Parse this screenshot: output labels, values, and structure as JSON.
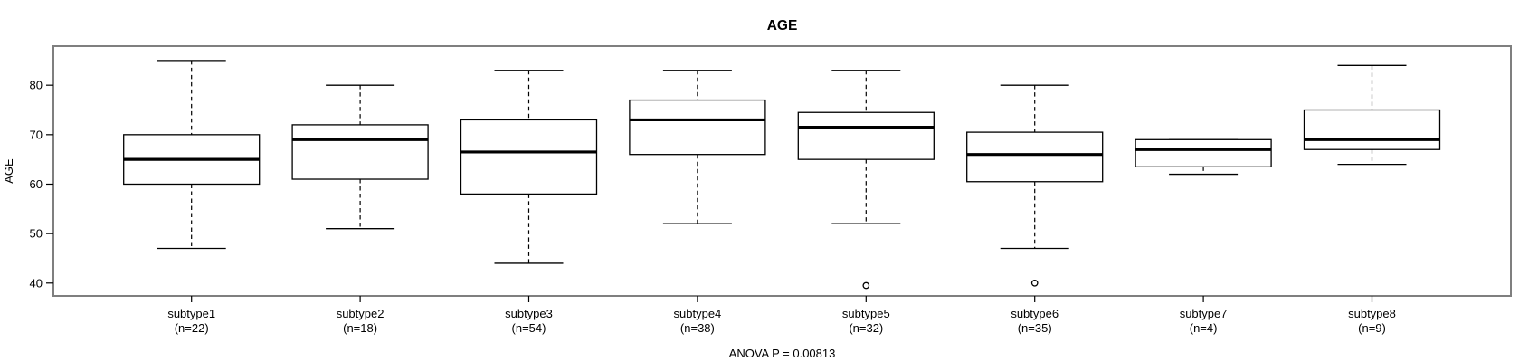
{
  "colors": {
    "line": "#000000",
    "frame": "#7f7f7f",
    "background": "#ffffff"
  },
  "chart_data": {
    "type": "boxplot",
    "title": "AGE",
    "ylabel": "AGE",
    "annotation": "ANOVA P = 0.00813",
    "yticks": [
      40,
      50,
      60,
      70,
      80
    ],
    "ylim": [
      37.4,
      87.9
    ],
    "grid": false,
    "legend": null,
    "groups": [
      {
        "label": "subtype1",
        "sublabel": "(n=22)",
        "whisker_low": 47,
        "q1": 60,
        "median": 65,
        "q3": 70,
        "whisker_high": 85,
        "outliers": []
      },
      {
        "label": "subtype2",
        "sublabel": "(n=18)",
        "whisker_low": 51,
        "q1": 61,
        "median": 69,
        "q3": 72,
        "whisker_high": 80,
        "outliers": []
      },
      {
        "label": "subtype3",
        "sublabel": "(n=54)",
        "whisker_low": 44,
        "q1": 58,
        "median": 66.5,
        "q3": 73,
        "whisker_high": 83,
        "outliers": []
      },
      {
        "label": "subtype4",
        "sublabel": "(n=38)",
        "whisker_low": 52,
        "q1": 66,
        "median": 73,
        "q3": 77,
        "whisker_high": 83,
        "outliers": []
      },
      {
        "label": "subtype5",
        "sublabel": "(n=32)",
        "whisker_low": 52,
        "q1": 65,
        "median": 71.5,
        "q3": 74.5,
        "whisker_high": 83,
        "outliers": [
          39.5
        ]
      },
      {
        "label": "subtype6",
        "sublabel": "(n=35)",
        "whisker_low": 47,
        "q1": 60.5,
        "median": 66,
        "q3": 70.5,
        "whisker_high": 80,
        "outliers": [
          40
        ]
      },
      {
        "label": "subtype7",
        "sublabel": "(n=4)",
        "whisker_low": 62,
        "q1": 63.5,
        "median": 67,
        "q3": 69,
        "whisker_high": 69,
        "outliers": []
      },
      {
        "label": "subtype8",
        "sublabel": "(n=9)",
        "whisker_low": 64,
        "q1": 67,
        "median": 69,
        "q3": 75,
        "whisker_high": 84,
        "outliers": []
      }
    ]
  }
}
